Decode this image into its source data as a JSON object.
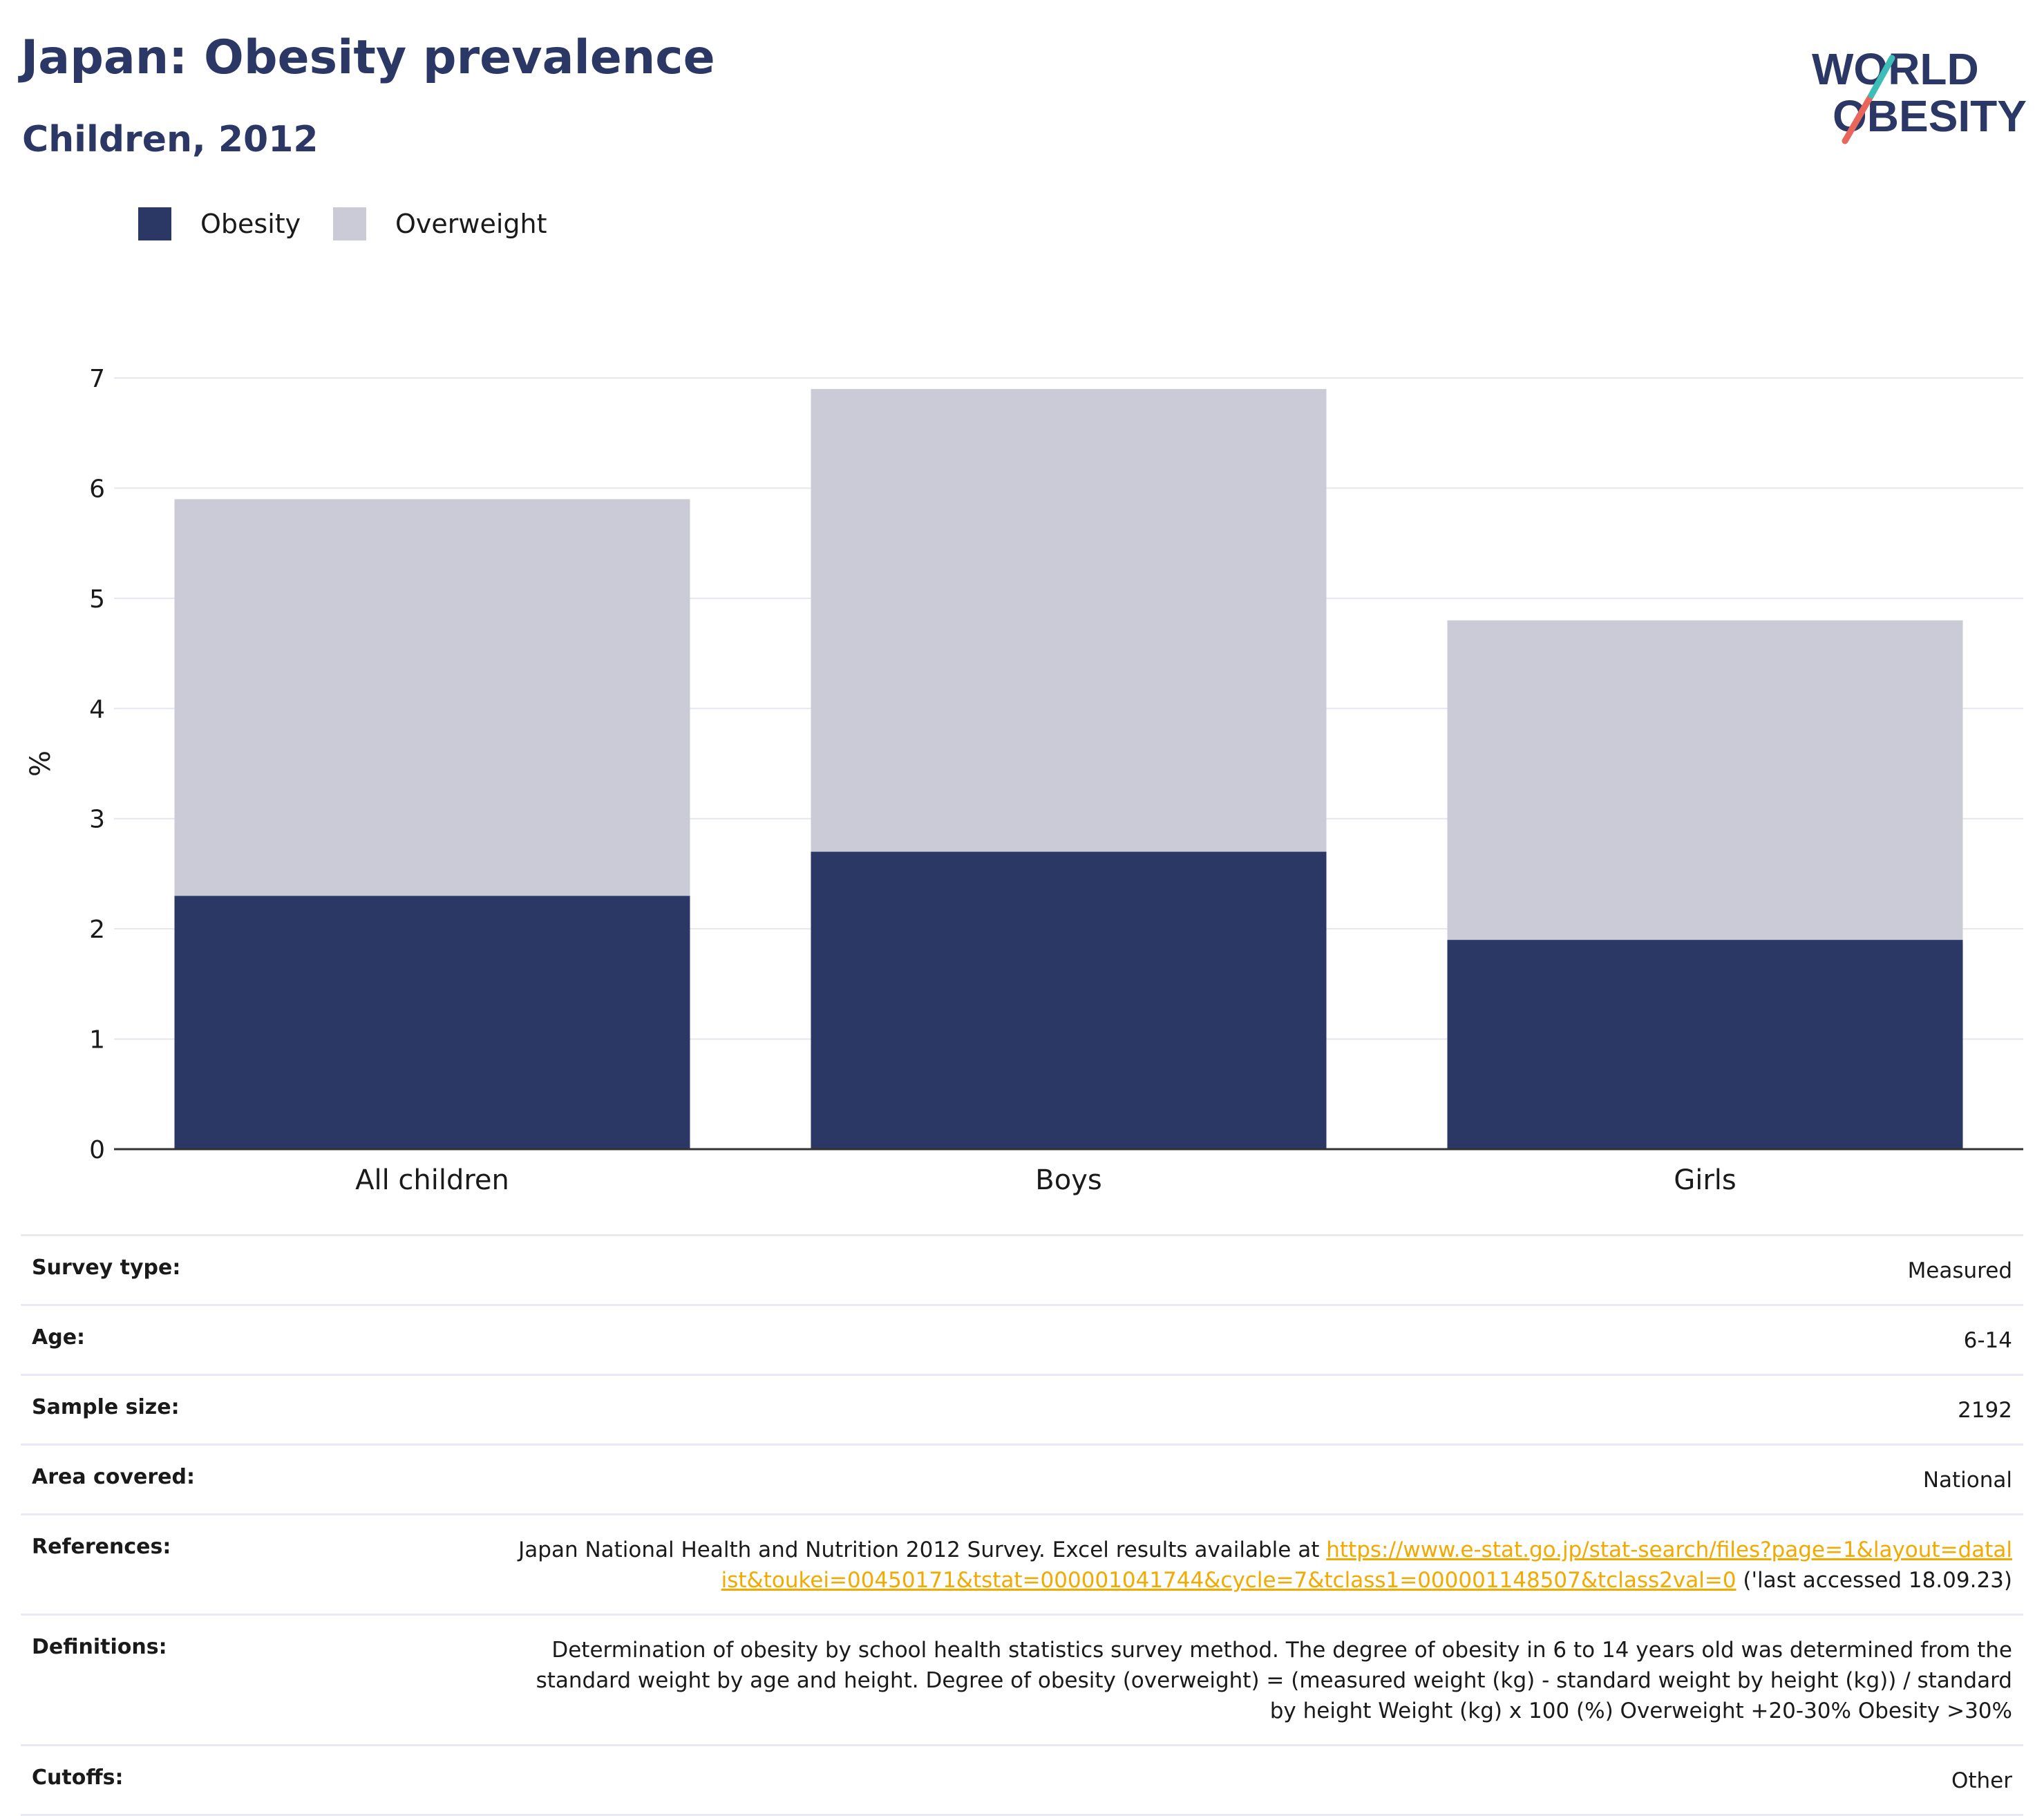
{
  "header": {
    "title": "Japan: Obesity prevalence",
    "subtitle": "Children, 2012",
    "logo_line1": "WORLD",
    "logo_line2": "OBESITY"
  },
  "legend": [
    {
      "label": "Obesity",
      "color": "#2b3866"
    },
    {
      "label": "Overweight",
      "color": "#cacbd6"
    }
  ],
  "chart_data": {
    "type": "bar",
    "stacked": true,
    "categories": [
      "All children",
      "Boys",
      "Girls"
    ],
    "series": [
      {
        "name": "Obesity",
        "values": [
          2.3,
          2.7,
          1.9
        ],
        "color": "#2b3866"
      },
      {
        "name": "Overweight",
        "values": [
          3.6,
          4.2,
          2.9
        ],
        "color": "#cacbd6"
      }
    ],
    "ylabel": "%",
    "ylim": [
      0,
      7
    ],
    "yticks": [
      0,
      1,
      2,
      3,
      4,
      5,
      6,
      7
    ],
    "grid": true,
    "legend_position": "top-left"
  },
  "info": {
    "survey_type": {
      "label": "Survey type:",
      "value": "Measured"
    },
    "age": {
      "label": "Age:",
      "value": "6-14"
    },
    "sample_size": {
      "label": "Sample size:",
      "value": "2192"
    },
    "area": {
      "label": "Area covered:",
      "value": "National"
    },
    "references": {
      "label": "References:",
      "text_before": "Japan National Health and Nutrition 2012 Survey. Excel results available at ",
      "link": "https://www.e-stat.go.jp/stat-search/files?page=1&layout=datalist&toukei=00450171&tstat=000001041744&cycle=7&tclass1=000001148507&tclass2val=0",
      "text_after": " ('last accessed 18.09.23)"
    },
    "definitions": {
      "label": "Definitions:",
      "value": "Determination of obesity by school health statistics survey method. The degree of obesity in 6 to 14 years old was determined from the standard weight by age and height. Degree of obesity (overweight) = (measured weight (kg) - standard weight by height (kg)) / standard by height Weight (kg) x 100 (%) Overweight +20-30% Obesity >30%"
    },
    "cutoffs": {
      "label": "Cutoffs:",
      "value": "Other"
    }
  }
}
